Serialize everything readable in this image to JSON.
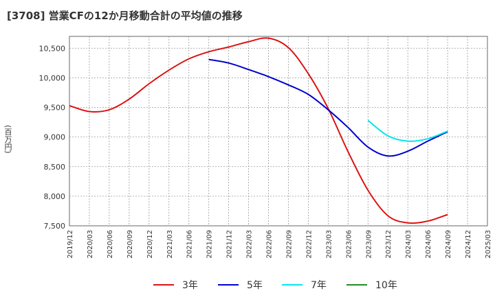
{
  "chart_data": {
    "type": "line",
    "title": "[3708]  営業CFの12か月移動合計の平均値の推移",
    "ylabel": "(百万円)",
    "xlabel": "",
    "ylim": [
      7500,
      10700
    ],
    "y_ticks": [
      7500,
      8000,
      8500,
      9000,
      9500,
      10000,
      10500
    ],
    "y_tick_labels": [
      "7,500",
      "8,000",
      "8,500",
      "9,000",
      "9,500",
      "10,000",
      "10,500"
    ],
    "x_tick_labels": [
      "2019/12",
      "2020/03",
      "2020/06",
      "2020/09",
      "2020/12",
      "2021/03",
      "2021/06",
      "2021/09",
      "2021/12",
      "2022/03",
      "2022/06",
      "2022/09",
      "2022/12",
      "2023/03",
      "2023/06",
      "2023/09",
      "2023/12",
      "2024/03",
      "2024/06",
      "2024/09",
      "2024/12",
      "2025/03"
    ],
    "grid": true,
    "legend_position": "bottom",
    "series": [
      {
        "name": "3年",
        "color": "#dd1111",
        "points": [
          [
            "2019/12",
            9530
          ],
          [
            "2020/03",
            9430
          ],
          [
            "2020/06",
            9460
          ],
          [
            "2020/09",
            9640
          ],
          [
            "2020/12",
            9900
          ],
          [
            "2021/03",
            10130
          ],
          [
            "2021/06",
            10320
          ],
          [
            "2021/09",
            10440
          ],
          [
            "2021/12",
            10520
          ],
          [
            "2022/03",
            10610
          ],
          [
            "2022/06",
            10670
          ],
          [
            "2022/09",
            10510
          ],
          [
            "2022/12",
            10070
          ],
          [
            "2023/03",
            9480
          ],
          [
            "2023/06",
            8750
          ],
          [
            "2023/09",
            8100
          ],
          [
            "2023/12",
            7670
          ],
          [
            "2024/03",
            7550
          ],
          [
            "2024/06",
            7580
          ],
          [
            "2024/09",
            7690
          ]
        ]
      },
      {
        "name": "5年",
        "color": "#0000cc",
        "points": [
          [
            "2021/09",
            10310
          ],
          [
            "2021/12",
            10250
          ],
          [
            "2022/03",
            10140
          ],
          [
            "2022/06",
            10020
          ],
          [
            "2022/09",
            9880
          ],
          [
            "2022/12",
            9720
          ],
          [
            "2023/03",
            9460
          ],
          [
            "2023/06",
            9160
          ],
          [
            "2023/09",
            8830
          ],
          [
            "2023/12",
            8680
          ],
          [
            "2024/03",
            8760
          ],
          [
            "2024/06",
            8930
          ],
          [
            "2024/09",
            9090
          ]
        ]
      },
      {
        "name": "7年",
        "color": "#00e5ee",
        "points": [
          [
            "2023/09",
            9280
          ],
          [
            "2023/12",
            9020
          ],
          [
            "2024/03",
            8930
          ],
          [
            "2024/06",
            8970
          ],
          [
            "2024/09",
            9100
          ]
        ]
      },
      {
        "name": "10年",
        "color": "#228b22",
        "points": []
      }
    ]
  }
}
